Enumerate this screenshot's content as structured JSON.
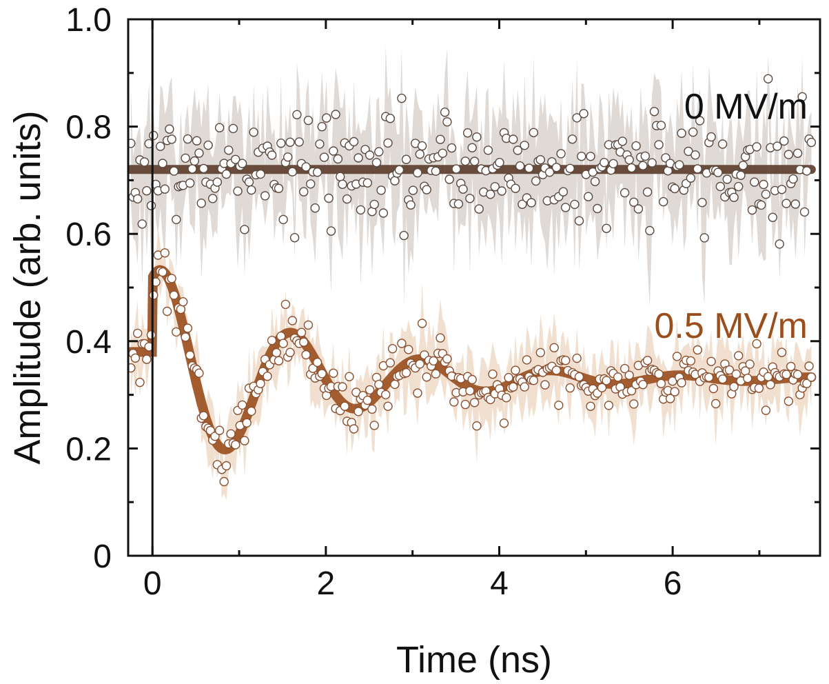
{
  "chart_data": {
    "type": "scatter",
    "xlabel": "Time (ns)",
    "ylabel": "Amplitude (arb. units)",
    "xlim": [
      -0.28,
      7.7
    ],
    "ylim": [
      0,
      1.0
    ],
    "xticks": [
      0,
      2,
      4,
      6
    ],
    "xtick_labels": [
      "0",
      "2",
      "4",
      "6"
    ],
    "yticks": [
      0,
      0.2,
      0.4,
      0.6,
      0.8,
      1.0
    ],
    "ytick_labels": [
      "0",
      "0.2",
      "0.4",
      "0.6",
      "0.8",
      "1.0"
    ],
    "vertical_reference_line_x": 0,
    "series": [
      {
        "name": "0 MV/m",
        "label": "0 MV/m",
        "fit": {
          "model": "constant",
          "value": 0.72
        },
        "noise_amplitude": 0.07,
        "band_halfwidth": 0.1,
        "point_count": 300,
        "colors": {
          "fit": "#5b3b2a",
          "band": "#d9d4cf",
          "label": "#111111",
          "marker_edge": "#5a4a40"
        }
      },
      {
        "name": "0.5 MV/m",
        "label": "0.5 MV/m",
        "fit": {
          "model": "damped_cosine",
          "offset": 0.33,
          "amplitude": 0.215,
          "period_ns": 1.5,
          "peak_time_ns": 0.12,
          "decay_time_ns": 1.75,
          "pre_zero_level": 0.38
        },
        "noise_amplitude": 0.035,
        "band_halfwidth": 0.055,
        "point_count": 300,
        "colors": {
          "fit": "#9a4e1c",
          "band": "#eed9c8",
          "label": "#9a4e1c",
          "marker_edge": "#8a5030"
        }
      }
    ],
    "x_range_points": [
      -0.25,
      7.6
    ]
  }
}
